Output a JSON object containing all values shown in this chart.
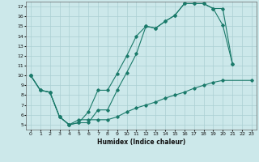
{
  "xlabel": "Humidex (Indice chaleur)",
  "bg_color": "#cce8ea",
  "line_color": "#1a7a6a",
  "grid_color": "#aacfd2",
  "xlim": [
    -0.5,
    23.5
  ],
  "ylim": [
    4.5,
    17.5
  ],
  "xticks": [
    0,
    1,
    2,
    3,
    4,
    5,
    6,
    7,
    8,
    9,
    10,
    11,
    12,
    13,
    14,
    15,
    16,
    17,
    18,
    19,
    20,
    21,
    22,
    23
  ],
  "yticks": [
    5,
    6,
    7,
    8,
    9,
    10,
    11,
    12,
    13,
    14,
    15,
    16,
    17
  ],
  "line1_x": [
    0,
    1,
    2,
    3,
    4,
    5,
    6,
    7,
    8,
    9,
    10,
    11,
    12,
    13,
    14,
    15,
    16,
    17,
    18,
    19,
    20,
    21
  ],
  "line1_y": [
    10,
    8.5,
    8.3,
    5.8,
    5.0,
    5.2,
    6.3,
    8.5,
    8.5,
    10.2,
    12.0,
    14.0,
    15.0,
    14.8,
    15.5,
    16.1,
    17.3,
    17.3,
    17.3,
    16.8,
    15.1,
    11.2
  ],
  "line2_x": [
    0,
    1,
    2,
    3,
    4,
    5,
    6,
    7,
    8,
    9,
    10,
    11,
    12,
    13,
    14,
    15,
    16,
    17,
    18,
    19,
    20,
    21
  ],
  "line2_y": [
    10,
    8.5,
    8.3,
    5.8,
    5.0,
    5.2,
    5.2,
    6.5,
    6.5,
    8.5,
    10.3,
    12.2,
    15.0,
    14.8,
    15.5,
    16.1,
    17.3,
    17.3,
    17.3,
    16.8,
    16.8,
    11.2
  ],
  "line3_x": [
    0,
    1,
    2,
    3,
    4,
    5,
    6,
    7,
    8,
    9,
    10,
    11,
    12,
    13,
    14,
    15,
    16,
    17,
    18,
    19,
    20,
    23
  ],
  "line3_y": [
    10,
    8.5,
    8.3,
    5.8,
    5.0,
    5.5,
    5.5,
    5.5,
    5.5,
    5.8,
    6.3,
    6.7,
    7.0,
    7.3,
    7.7,
    8.0,
    8.3,
    8.7,
    9.0,
    9.3,
    9.5,
    9.5
  ]
}
